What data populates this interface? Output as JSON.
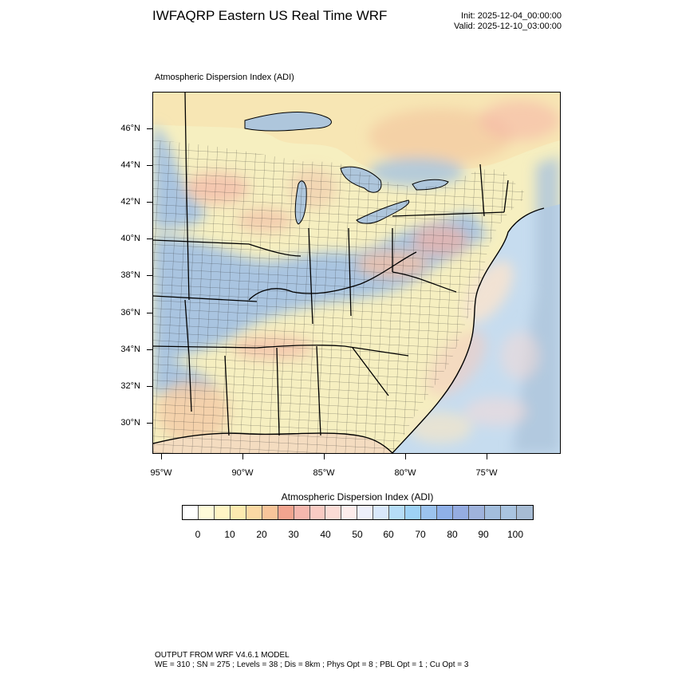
{
  "header": {
    "title": "IWFAQRP Eastern US Real Time WRF",
    "init": "Init: 2025-12-04_00:00:00",
    "valid": "Valid: 2025-12-10_03:00:00"
  },
  "map": {
    "title": "Atmospheric Dispersion Index   (ADI)",
    "lat_labels": [
      "46°N",
      "44°N",
      "42°N",
      "40°N",
      "38°N",
      "36°N",
      "34°N",
      "32°N",
      "30°N"
    ],
    "lon_labels": [
      "95°W",
      "90°W",
      "85°W",
      "80°W",
      "75°W"
    ],
    "colors": {
      "land_low": "#f6efc0",
      "land_mid": "#f3c7a4",
      "land_high": "#a9c4e0",
      "water": "#aec6dc",
      "ocean_light": "#c6dcef",
      "canada": "#f5e8a8",
      "borders": "#000000"
    }
  },
  "colorbar": {
    "title": "Atmospheric Dispersion Index  (ADI)",
    "labels": [
      "0",
      "10",
      "20",
      "30",
      "40",
      "50",
      "60",
      "70",
      "80",
      "90",
      "100"
    ],
    "colors": [
      "#ffffff",
      "#fffbd9",
      "#fff5c4",
      "#fdeab0",
      "#fbd9a4",
      "#f8c59a",
      "#f2a48f",
      "#f5b7ae",
      "#f9cbc3",
      "#fbdcd6",
      "#fdeceb",
      "#eef0fb",
      "#d9e8fb",
      "#b6ddf7",
      "#9ed2f5",
      "#9cc3ee",
      "#8fb0e8",
      "#95ace1",
      "#9fb3dc",
      "#a3bedd",
      "#a9c4e0",
      "#a7bcd4"
    ]
  },
  "footer": {
    "line1": "OUTPUT FROM WRF V4.6.1 MODEL",
    "line2": "WE = 310 ; SN = 275 ; Levels = 38 ; Dis = 8km ; Phys Opt = 8 ; PBL Opt = 1 ; Cu Opt = 3"
  }
}
